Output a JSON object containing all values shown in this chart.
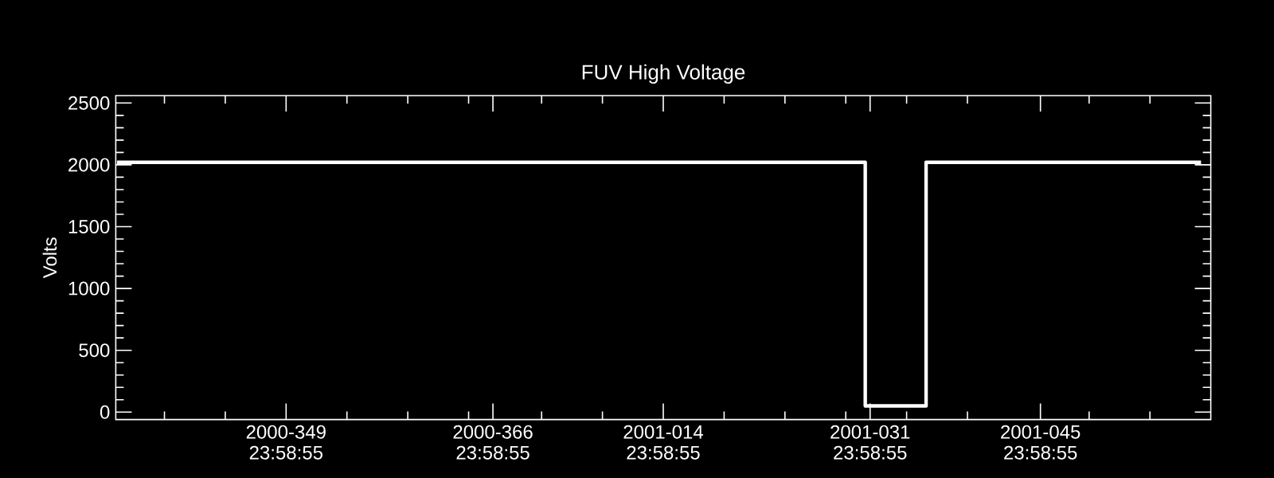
{
  "chart_data": {
    "type": "line",
    "title": "FUV High Voltage",
    "ylabel": "Volts",
    "xlim": [
      "2000-12-01T00:00",
      "2001-03-01T00:00"
    ],
    "ylim": [
      -60,
      2560
    ],
    "xticks": [
      {
        "value": "2000-12-05T00:00",
        "label": null
      },
      {
        "value": "2000-12-10T00:00",
        "label": null
      },
      {
        "value": "2000-12-14T23:59",
        "label": "2000-349 23:58:55"
      },
      {
        "value": "2000-12-20T00:00",
        "label": null
      },
      {
        "value": "2000-12-25T00:00",
        "label": null
      },
      {
        "value": "2000-12-30T00:00",
        "label": null
      },
      {
        "value": "2000-12-31T23:59",
        "label": "2000-366 23:58:55"
      },
      {
        "value": "2001-01-05T00:00",
        "label": null
      },
      {
        "value": "2001-01-10T00:00",
        "label": null
      },
      {
        "value": "2001-01-14T23:59",
        "label": "2001-014 23:58:55"
      },
      {
        "value": "2001-01-20T00:00",
        "label": null
      },
      {
        "value": "2001-01-25T00:00",
        "label": null
      },
      {
        "value": "2001-01-30T00:00",
        "label": null
      },
      {
        "value": "2001-01-31T23:59",
        "label": "2001-031 23:58:55"
      },
      {
        "value": "2001-02-04T00:00",
        "label": null
      },
      {
        "value": "2001-02-09T00:00",
        "label": null
      },
      {
        "value": "2001-02-14T23:59",
        "label": "2001-045 23:58:55"
      },
      {
        "value": "2001-02-19T00:00",
        "label": null
      },
      {
        "value": "2001-02-24T00:00",
        "label": null
      }
    ],
    "yticks": [
      0,
      {
        "value": 100,
        "label": null
      },
      {
        "value": 200,
        "label": null
      },
      {
        "value": 300,
        "label": null
      },
      {
        "value": 400,
        "label": null
      },
      500,
      {
        "value": 600,
        "label": null
      },
      {
        "value": 700,
        "label": null
      },
      {
        "value": 800,
        "label": null
      },
      {
        "value": 900,
        "label": null
      },
      1000,
      {
        "value": 1100,
        "label": null
      },
      {
        "value": 1200,
        "label": null
      },
      {
        "value": 1300,
        "label": null
      },
      {
        "value": 1400,
        "label": null
      },
      1500,
      {
        "value": 1600,
        "label": null
      },
      {
        "value": 1700,
        "label": null
      },
      {
        "value": 1800,
        "label": null
      },
      {
        "value": 1900,
        "label": null
      },
      2000,
      {
        "value": 2100,
        "label": null
      },
      {
        "value": 2200,
        "label": null
      },
      {
        "value": 2300,
        "label": null
      },
      {
        "value": 2400,
        "label": null
      },
      2500
    ],
    "series": [
      {
        "color": "#ffffff",
        "x": [
          "2000-12-01T02:24",
          "2001-01-31T14:24",
          "2001-01-31T14:24",
          "2001-02-05T14:24",
          "2001-02-05T14:24",
          "2001-02-28T04:48"
        ],
        "values": [
          2020,
          2020,
          50,
          50,
          2020,
          2020
        ]
      }
    ]
  }
}
